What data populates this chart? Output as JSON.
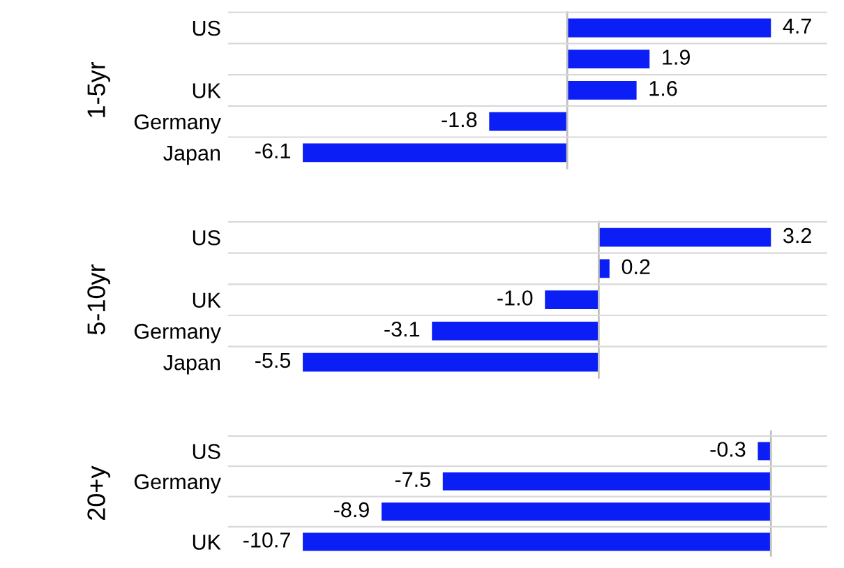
{
  "chart_data": [
    {
      "type": "bar",
      "orientation": "horizontal",
      "ylabel": "1-5yr",
      "categories": [
        "US",
        null,
        "UK",
        "Germany",
        "Japan"
      ],
      "values": [
        4.7,
        1.9,
        1.6,
        -1.8,
        -6.1
      ],
      "value_labels": [
        "4.7",
        "1.9",
        "1.6",
        "-1.8",
        "-6.1"
      ],
      "color": "#0a1ef5"
    },
    {
      "type": "bar",
      "orientation": "horizontal",
      "ylabel": "5-10yr",
      "categories": [
        "US",
        null,
        "UK",
        "Germany",
        "Japan"
      ],
      "values": [
        3.2,
        0.2,
        -1.0,
        -3.1,
        -5.5
      ],
      "value_labels": [
        "3.2",
        "0.2",
        "-1.0",
        "-3.1",
        "-5.5"
      ],
      "color": "#0a1ef5"
    },
    {
      "type": "bar",
      "orientation": "horizontal",
      "ylabel": "20+y",
      "categories": [
        "US",
        "Germany",
        null,
        "UK"
      ],
      "values": [
        -0.3,
        -7.5,
        -8.9,
        -10.7
      ],
      "value_labels": [
        "-0.3",
        "-7.5",
        "-8.9",
        "-10.7"
      ],
      "color": "#0a1ef5"
    }
  ]
}
